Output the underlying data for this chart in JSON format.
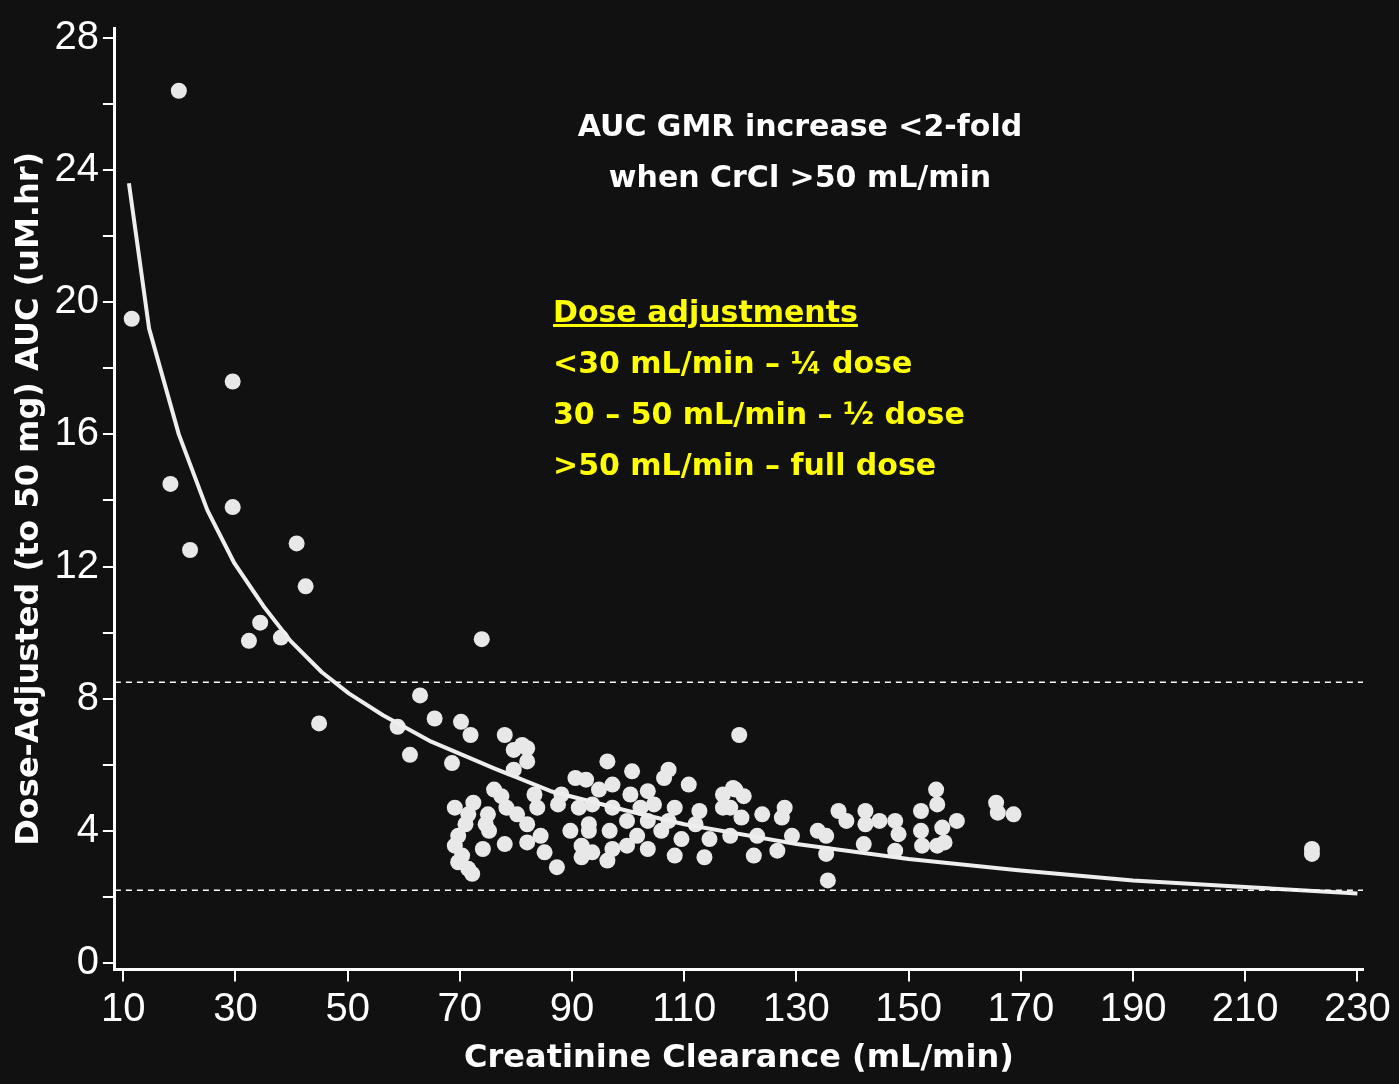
{
  "chart_data": {
    "type": "scatter",
    "xlabel": "Creatinine Clearance (mL/min)",
    "ylabel": "Dose-Adjusted (to 50 mg) AUC (uM.hr)",
    "xlim": [
      8.5,
      231
    ],
    "xticks": [
      10,
      30,
      50,
      70,
      90,
      110,
      130,
      150,
      170,
      190,
      210,
      230
    ],
    "ylim": [
      -0.2,
      28.3
    ],
    "yticks": [
      0,
      {
        "value": 2,
        "label": null
      },
      4,
      {
        "value": 6,
        "label": null
      },
      8,
      {
        "value": 10,
        "label": null
      },
      12,
      {
        "value": 14,
        "label": null
      },
      16,
      {
        "value": 18,
        "label": null
      },
      20,
      {
        "value": 22,
        "label": null
      },
      24,
      {
        "value": 26,
        "label": null
      },
      28
    ],
    "grid": false,
    "legend": false,
    "marker": "circle",
    "ref_lines": [
      {
        "axis": "y",
        "value": 8.5,
        "color": "#ffffff",
        "line_style": "dashed"
      },
      {
        "axis": "y",
        "value": 2.2,
        "color": "#ffffff",
        "line_style": "dashed"
      }
    ],
    "annotations": [
      "AUC GMR increase <2-fold",
      "when CrCl >50 mL/min",
      "Dose adjustments",
      "<30 mL/min – ¼ dose",
      "30 – 50 mL/min – ½ dose",
      ">50 mL/min – full dose"
    ],
    "series": [
      {
        "color": "#e8e8e8",
        "x": [
          19.9,
          11.5,
          29.5,
          18.4,
          21.9,
          29.5,
          40.9,
          42.5,
          34.4,
          32.4,
          38.1,
          44.9,
          73.9,
          62.9,
          58.9,
          61.1,
          65.5,
          70.2,
          68.6,
          71.9,
          119.8,
          96.3,
          100.7,
          87.3,
          135.6,
          165.6,
          165.9,
          168.7,
          154.9,
          155.1,
          221.9,
          221.9,
          78,
          81.1,
          82,
          79.6,
          82,
          79.6,
          107.2,
          106.4,
          90.6,
          92.5,
          97.2,
          110.8,
          76.1,
          77.4,
          83.3,
          88.1,
          94.8,
          100.4,
          103.5,
          116.9,
          118.7,
          69.1,
          72.4,
          75,
          78.3,
          80.2,
          83.8,
          87.5,
          91.2,
          93.6,
          97.2,
          102.2,
          104.6,
          108.3,
          112.7,
          116.9,
          71.5,
          71,
          74.6,
          82,
          89.7,
          93,
          99.8,
          103.5,
          107.2,
          112,
          69.7,
          75.2,
          84.4,
          93,
          96.7,
          101.6,
          105.9,
          109.5,
          114.5,
          69.1,
          74.1,
          78,
          82,
          85.1,
          91.7,
          93.6,
          97.2,
          99.8,
          103.5,
          108.3,
          113.6,
          69.7,
          71.5,
          72.2,
          96.3,
          70.4,
          91.7,
          119.1,
          120.6,
          118.2,
          120.2,
          123.9,
          127.9,
          127.4,
          118.2,
          123,
          129.2,
          122.4,
          126.6,
          133.8,
          135.3,
          135.3,
          137.5,
          138.9,
          142.3,
          142.3,
          142,
          144.8,
          147.6,
          148.2,
          147.6,
          152.2,
          152.2,
          152.4,
          156,
          155.1,
          156.4,
          158.6
        ],
        "values": [
          26.4,
          19.5,
          17.6,
          14.5,
          12.5,
          13.8,
          12.7,
          11.4,
          10.3,
          9.75,
          9.85,
          7.25,
          9.8,
          8.1,
          7.15,
          6.3,
          7.4,
          7.3,
          6.05,
          6.9,
          6.9,
          6.1,
          5.8,
          2.9,
          2.5,
          4.85,
          4.55,
          4.5,
          5.25,
          4.8,
          3.45,
          3.3,
          6.9,
          6.6,
          6.5,
          6.45,
          6.1,
          5.85,
          5.85,
          5.6,
          5.6,
          5.55,
          5.4,
          5.4,
          5.25,
          5.05,
          5.1,
          5.1,
          5.25,
          5.1,
          5.2,
          5.1,
          5.3,
          4.7,
          4.85,
          4.5,
          4.7,
          4.5,
          4.7,
          4.8,
          4.7,
          4.8,
          4.7,
          4.7,
          4.8,
          4.7,
          4.6,
          4.7,
          4.5,
          4.2,
          4.2,
          4.2,
          4.0,
          4.2,
          4.3,
          4.3,
          4.3,
          4.2,
          3.85,
          4.0,
          3.85,
          4.0,
          4.0,
          3.85,
          4.0,
          3.75,
          3.75,
          3.55,
          3.45,
          3.6,
          3.65,
          3.35,
          3.55,
          3.35,
          3.45,
          3.55,
          3.45,
          3.25,
          3.2,
          3.05,
          2.85,
          2.7,
          3.1,
          3.25,
          3.2,
          5.25,
          5.05,
          4.7,
          4.4,
          4.5,
          4.7,
          4.4,
          3.85,
          3.85,
          3.85,
          3.25,
          3.4,
          4.0,
          3.85,
          3.3,
          4.6,
          4.3,
          4.6,
          4.2,
          3.6,
          4.3,
          4.3,
          3.9,
          3.4,
          4.6,
          4.0,
          3.55,
          4.1,
          3.55,
          3.65,
          4.3
        ]
      },
      {
        "type": "line",
        "color": "#eeeeee",
        "marker": "none",
        "line_style": "solid",
        "x": [
          11,
          14.6,
          19.9,
          25,
          29.8,
          35,
          39.8,
          45.4,
          50.2,
          56.3,
          64.9,
          76,
          86.2,
          100,
          110,
          130,
          150,
          170,
          190,
          210,
          230
        ],
        "values": [
          23.6,
          19.2,
          16.0,
          13.7,
          12.1,
          10.8,
          9.75,
          8.8,
          8.16,
          7.5,
          6.7,
          5.9,
          5.2,
          4.6,
          4.2,
          3.6,
          3.15,
          2.8,
          2.5,
          2.3,
          2.1
        ]
      }
    ]
  }
}
